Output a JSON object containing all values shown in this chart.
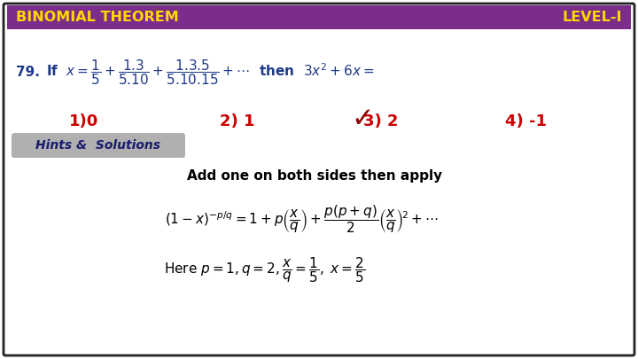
{
  "title_left": "BINOMIAL THEOREM",
  "title_right": "LEVEL-I",
  "header_bg": "#7B2D8B",
  "header_text_color": "#FFD700",
  "bg_color": "#FFFFFF",
  "border_color": "#222222",
  "question_color": "#1E3A8A",
  "question_number": "79.",
  "option_color": "#CC0000",
  "checkmark_color": "#8B0000",
  "hints_label": "Hints &  Solutions",
  "hints_bg": "#B0B0B0",
  "hint_text": "Add one on both sides then apply",
  "opt1": "1)0",
  "opt2": "2) 1",
  "opt3": "3) 2",
  "opt4": "4) -1",
  "note_prefix": "Here p=1, q=2,",
  "bg_inner": "#FFFFFF"
}
